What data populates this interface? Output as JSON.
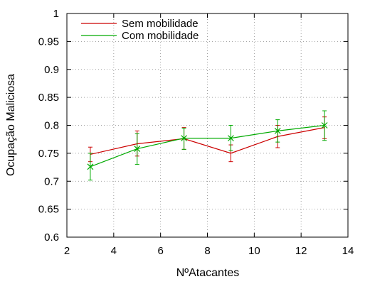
{
  "chart_data": {
    "type": "line",
    "xlabel": "NºAtacantes",
    "ylabel": "Ocupação Maliciosa",
    "xlim": [
      2,
      14
    ],
    "ylim": [
      0.6,
      1
    ],
    "xticks": [
      2,
      4,
      6,
      8,
      10,
      12,
      14
    ],
    "yticks": [
      0.6,
      0.65,
      0.7,
      0.75,
      0.8,
      0.85,
      0.9,
      0.95,
      1
    ],
    "xtick_labels": [
      "2",
      "4",
      "6",
      "8",
      "10",
      "12",
      "14"
    ],
    "ytick_labels": [
      "0.6",
      "0.65",
      "0.7",
      "0.75",
      "0.8",
      "0.85",
      "0.9",
      "0.95",
      "1"
    ],
    "grid": true,
    "legend_position": "top-left",
    "series": [
      {
        "name": "Sem mobilidade",
        "color": "#cc0000",
        "marker": "none",
        "x": [
          3,
          5,
          7,
          9,
          11,
          13
        ],
        "y": [
          0.748,
          0.767,
          0.776,
          0.75,
          0.78,
          0.796
        ],
        "err_low": [
          0.735,
          0.745,
          0.757,
          0.735,
          0.76,
          0.776
        ],
        "err_high": [
          0.761,
          0.79,
          0.796,
          0.765,
          0.8,
          0.815
        ]
      },
      {
        "name": "Com mobilidade",
        "color": "#00aa00",
        "marker": "x",
        "x": [
          3,
          5,
          7,
          9,
          11,
          13
        ],
        "y": [
          0.726,
          0.758,
          0.777,
          0.777,
          0.79,
          0.8
        ],
        "err_low": [
          0.702,
          0.73,
          0.757,
          0.755,
          0.77,
          0.773
        ],
        "err_high": [
          0.75,
          0.785,
          0.795,
          0.8,
          0.81,
          0.826
        ]
      }
    ]
  }
}
